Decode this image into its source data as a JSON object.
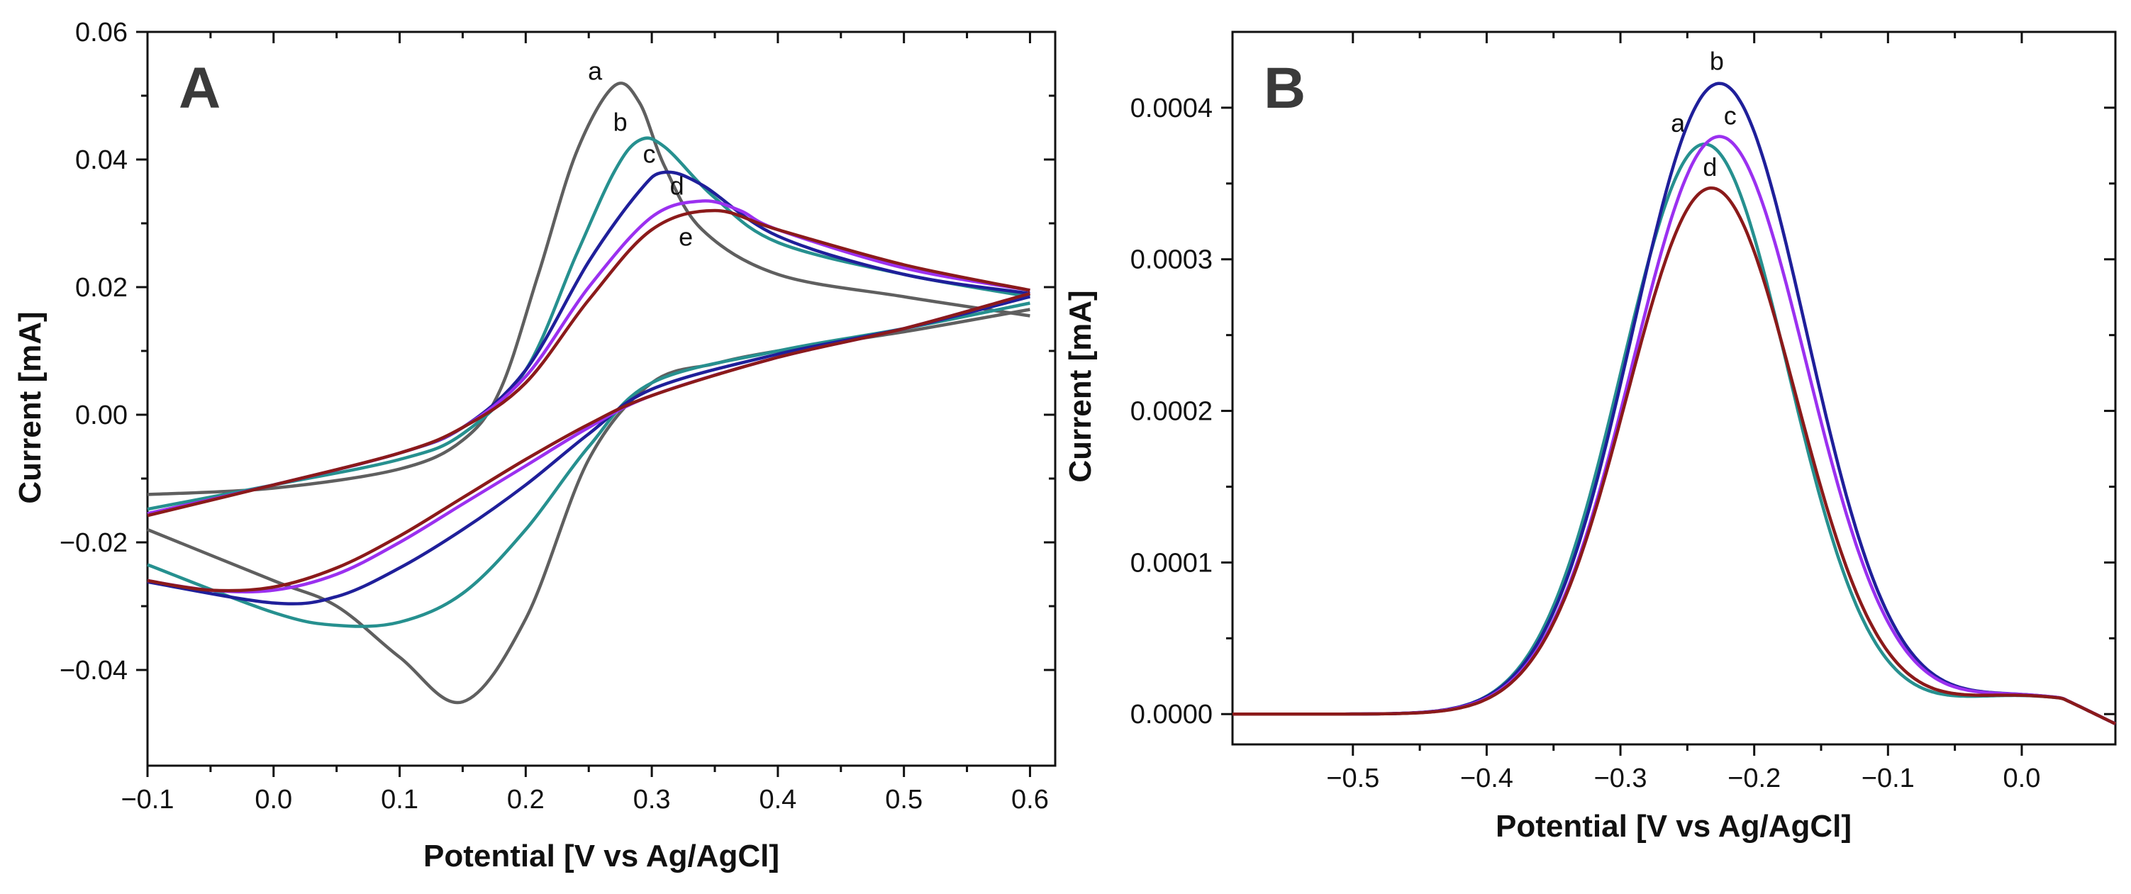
{
  "chart_data": [
    {
      "type": "line",
      "panel_label": "A",
      "xlabel": "Potential [V vs Ag/AgCl]",
      "ylabel": "Current [mA]",
      "xlim": [
        -0.1,
        0.62
      ],
      "ylim": [
        -0.055,
        0.06
      ],
      "xticks": [
        -0.1,
        0.0,
        0.1,
        0.2,
        0.3,
        0.4,
        0.5,
        0.6
      ],
      "xtick_labels": [
        "−0.1",
        "0.0",
        "0.1",
        "0.2",
        "0.3",
        "0.4",
        "0.5",
        "0.6"
      ],
      "yticks": [
        -0.04,
        -0.02,
        0.0,
        0.02,
        0.04,
        0.06
      ],
      "ytick_labels": [
        "−0.04",
        "−0.02",
        "0.00",
        "0.02",
        "0.04",
        "0.06"
      ],
      "series": [
        {
          "name": "a",
          "color": "#5f5f5f",
          "forward": [
            [
              -0.1,
              -0.0125
            ],
            [
              0.0,
              -0.0115
            ],
            [
              0.1,
              -0.0085
            ],
            [
              0.15,
              -0.004
            ],
            [
              0.18,
              0.004
            ],
            [
              0.21,
              0.022
            ],
            [
              0.24,
              0.041
            ],
            [
              0.27,
              0.0515
            ],
            [
              0.29,
              0.049
            ],
            [
              0.31,
              0.039
            ],
            [
              0.34,
              0.029
            ],
            [
              0.4,
              0.022
            ],
            [
              0.5,
              0.0185
            ],
            [
              0.6,
              0.0155
            ]
          ],
          "reverse": [
            [
              0.6,
              0.0165
            ],
            [
              0.5,
              0.013
            ],
            [
              0.4,
              0.01
            ],
            [
              0.35,
              0.008
            ],
            [
              0.3,
              0.005
            ],
            [
              0.25,
              -0.007
            ],
            [
              0.2,
              -0.032
            ],
            [
              0.15,
              -0.045
            ],
            [
              0.1,
              -0.038
            ],
            [
              0.05,
              -0.03
            ],
            [
              0.0,
              -0.026
            ],
            [
              -0.1,
              -0.018
            ]
          ],
          "label_at": [
            0.255,
            0.0525
          ]
        },
        {
          "name": "b",
          "color": "#26908f",
          "forward": [
            [
              -0.1,
              -0.0148
            ],
            [
              0.0,
              -0.011
            ],
            [
              0.1,
              -0.007
            ],
            [
              0.15,
              -0.003
            ],
            [
              0.2,
              0.007
            ],
            [
              0.24,
              0.025
            ],
            [
              0.27,
              0.038
            ],
            [
              0.29,
              0.043
            ],
            [
              0.31,
              0.042
            ],
            [
              0.35,
              0.034
            ],
            [
              0.4,
              0.027
            ],
            [
              0.5,
              0.022
            ],
            [
              0.6,
              0.0185
            ]
          ],
          "reverse": [
            [
              0.6,
              0.0175
            ],
            [
              0.5,
              0.0135
            ],
            [
              0.4,
              0.01
            ],
            [
              0.3,
              0.005
            ],
            [
              0.25,
              -0.005
            ],
            [
              0.2,
              -0.018
            ],
            [
              0.15,
              -0.028
            ],
            [
              0.1,
              -0.0325
            ],
            [
              0.05,
              -0.033
            ],
            [
              0.0,
              -0.031
            ],
            [
              -0.1,
              -0.0235
            ]
          ],
          "label_at": [
            0.275,
            0.0445
          ]
        },
        {
          "name": "c",
          "color": "#1f1f9a",
          "forward": [
            [
              -0.1,
              -0.0155
            ],
            [
              0.0,
              -0.011
            ],
            [
              0.1,
              -0.006
            ],
            [
              0.15,
              -0.002
            ],
            [
              0.2,
              0.007
            ],
            [
              0.25,
              0.024
            ],
            [
              0.29,
              0.035
            ],
            [
              0.31,
              0.038
            ],
            [
              0.34,
              0.036
            ],
            [
              0.4,
              0.028
            ],
            [
              0.5,
              0.022
            ],
            [
              0.6,
              0.019
            ]
          ],
          "reverse": [
            [
              0.6,
              0.0185
            ],
            [
              0.5,
              0.0135
            ],
            [
              0.4,
              0.0095
            ],
            [
              0.3,
              0.004
            ],
            [
              0.25,
              -0.003
            ],
            [
              0.2,
              -0.011
            ],
            [
              0.15,
              -0.018
            ],
            [
              0.1,
              -0.024
            ],
            [
              0.05,
              -0.0285
            ],
            [
              0.0,
              -0.0295
            ],
            [
              -0.1,
              -0.0262
            ]
          ],
          "label_at": [
            0.298,
            0.0395
          ]
        },
        {
          "name": "d",
          "color": "#9b30f0",
          "forward": [
            [
              -0.1,
              -0.0155
            ],
            [
              0.0,
              -0.011
            ],
            [
              0.1,
              -0.006
            ],
            [
              0.15,
              -0.002
            ],
            [
              0.2,
              0.006
            ],
            [
              0.25,
              0.02
            ],
            [
              0.3,
              0.031
            ],
            [
              0.34,
              0.0335
            ],
            [
              0.37,
              0.032
            ],
            [
              0.4,
              0.029
            ],
            [
              0.5,
              0.023
            ],
            [
              0.6,
              0.0195
            ]
          ],
          "reverse": [
            [
              0.6,
              0.019
            ],
            [
              0.5,
              0.0135
            ],
            [
              0.4,
              0.009
            ],
            [
              0.3,
              0.003
            ],
            [
              0.25,
              -0.002
            ],
            [
              0.2,
              -0.008
            ],
            [
              0.15,
              -0.014
            ],
            [
              0.1,
              -0.02
            ],
            [
              0.05,
              -0.025
            ],
            [
              0.0,
              -0.0275
            ],
            [
              -0.05,
              -0.0275
            ],
            [
              -0.1,
              -0.026
            ]
          ],
          "label_at": [
            0.32,
            0.0345
          ]
        },
        {
          "name": "e",
          "color": "#8b1a1a",
          "forward": [
            [
              -0.1,
              -0.0158
            ],
            [
              0.0,
              -0.011
            ],
            [
              0.1,
              -0.006
            ],
            [
              0.15,
              -0.002
            ],
            [
              0.2,
              0.005
            ],
            [
              0.25,
              0.018
            ],
            [
              0.3,
              0.029
            ],
            [
              0.35,
              0.032
            ],
            [
              0.4,
              0.029
            ],
            [
              0.5,
              0.0235
            ],
            [
              0.6,
              0.0195
            ]
          ],
          "reverse": [
            [
              0.6,
              0.019
            ],
            [
              0.5,
              0.0135
            ],
            [
              0.4,
              0.009
            ],
            [
              0.3,
              0.003
            ],
            [
              0.25,
              -0.0015
            ],
            [
              0.2,
              -0.007
            ],
            [
              0.15,
              -0.013
            ],
            [
              0.1,
              -0.019
            ],
            [
              0.05,
              -0.024
            ],
            [
              0.0,
              -0.027
            ],
            [
              -0.05,
              -0.0275
            ],
            [
              -0.1,
              -0.026
            ]
          ],
          "label_at": [
            0.327,
            0.0265
          ]
        }
      ]
    },
    {
      "type": "line",
      "panel_label": "B",
      "xlabel": "Potential [V vs Ag/AgCl]",
      "ylabel": "Current [mA]",
      "xlim": [
        -0.59,
        0.07
      ],
      "ylim": [
        -2e-05,
        0.00045
      ],
      "xticks": [
        -0.5,
        -0.4,
        -0.3,
        -0.2,
        -0.1,
        0.0
      ],
      "xtick_labels": [
        "−0.5",
        "−0.4",
        "−0.3",
        "−0.2",
        "−0.1",
        "0.0"
      ],
      "yticks": [
        0.0,
        0.0001,
        0.0002,
        0.0003,
        0.0004
      ],
      "ytick_labels": [
        "0.0000",
        "0.0001",
        "0.0002",
        "0.0003",
        "0.0004"
      ],
      "series": [
        {
          "name": "a",
          "color": "#26908f",
          "peak_x": -0.237,
          "peak_y": 0.000376,
          "width": 0.062,
          "baseline": 0.0,
          "label_at": [
            -0.257,
            0.000384
          ]
        },
        {
          "name": "b",
          "color": "#1f1f9a",
          "peak_x": -0.226,
          "peak_y": 0.000416,
          "width": 0.065,
          "baseline": 0.0,
          "label_at": [
            -0.228,
            0.000425
          ]
        },
        {
          "name": "c",
          "color": "#9b30f0",
          "peak_x": -0.226,
          "peak_y": 0.000381,
          "width": 0.065,
          "baseline": 0.0,
          "label_at": [
            -0.218,
            0.000389
          ]
        },
        {
          "name": "d",
          "color": "#8b1a1a",
          "peak_x": -0.232,
          "peak_y": 0.000347,
          "width": 0.063,
          "baseline": 0.0,
          "label_at": [
            -0.233,
            0.000355
          ]
        }
      ]
    }
  ]
}
